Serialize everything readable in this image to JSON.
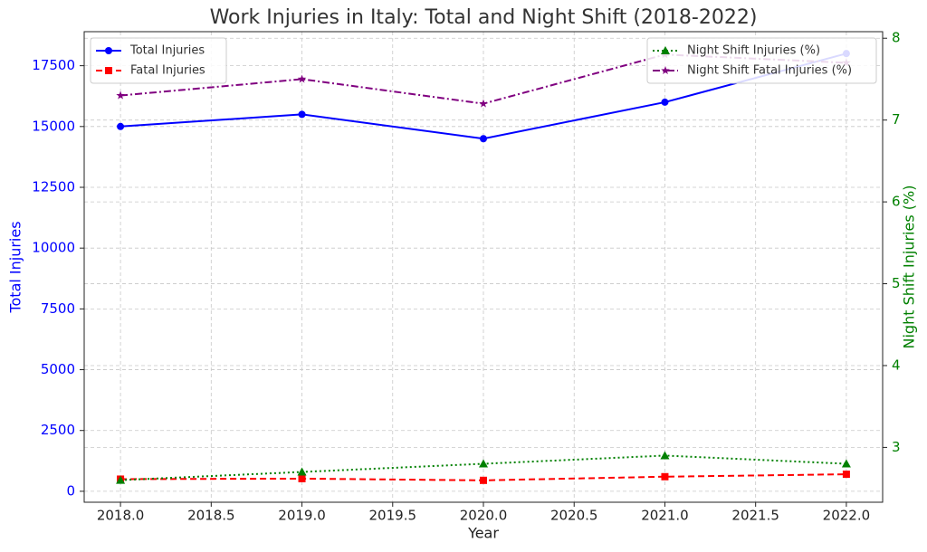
{
  "chart_data": {
    "type": "line",
    "title": "Work Injuries in Italy: Total and Night Shift (2018-2022)",
    "x_label": "Year",
    "y_label": "Total Injuries",
    "y2_label": "Night Shift Injuries (%)",
    "x": [
      2018,
      2019,
      2020,
      2021,
      2022
    ],
    "series": [
      {
        "name": "Total Injuries",
        "color": "#0000ff",
        "linestyle": "solid",
        "marker": "circle",
        "axis": "y",
        "values": [
          15000,
          15500,
          14500,
          16000,
          18000
        ]
      },
      {
        "name": "Fatal Injuries",
        "color": "#ff0000",
        "linestyle": "dashed",
        "marker": "square",
        "axis": "y",
        "values": [
          500,
          520,
          450,
          600,
          700
        ]
      },
      {
        "name": "Night Shift Injuries (%)",
        "color": "#008000",
        "linestyle": "dotted",
        "marker": "triangle",
        "axis": "y2",
        "values": [
          2.6,
          2.7,
          2.8,
          2.9,
          2.8
        ]
      },
      {
        "name": "Night Shift Fatal Injuries (%)",
        "color": "#800080",
        "linestyle": "dashdot",
        "marker": "star",
        "axis": "y2",
        "values": [
          7.3,
          7.5,
          7.2,
          7.8,
          7.7
        ]
      }
    ],
    "xlim": [
      2017.8,
      2022.2
    ],
    "xticks": [
      {
        "value": 2018,
        "label": "2018.0"
      },
      {
        "value": 2018.5,
        "label": "2018.5"
      },
      {
        "value": 2019,
        "label": "2019.0"
      },
      {
        "value": 2019.5,
        "label": "2019.5"
      },
      {
        "value": 2020,
        "label": "2020.0"
      },
      {
        "value": 2020.5,
        "label": "2020.5"
      },
      {
        "value": 2021,
        "label": "2021.0"
      },
      {
        "value": 2021.5,
        "label": "2021.5"
      },
      {
        "value": 2022,
        "label": "2022.0"
      }
    ],
    "ylim": [
      -450,
      18900
    ],
    "yticks": [
      0,
      2500,
      5000,
      7500,
      10000,
      12500,
      15000,
      17500
    ],
    "y2lim": [
      2.33,
      8.08
    ],
    "y2ticks": [
      3,
      4,
      5,
      6,
      7,
      8
    ],
    "y_color": "#0000ff",
    "y2_color": "#008000",
    "grid": true,
    "legend_y": "upper left",
    "legend_y2": "upper right"
  }
}
